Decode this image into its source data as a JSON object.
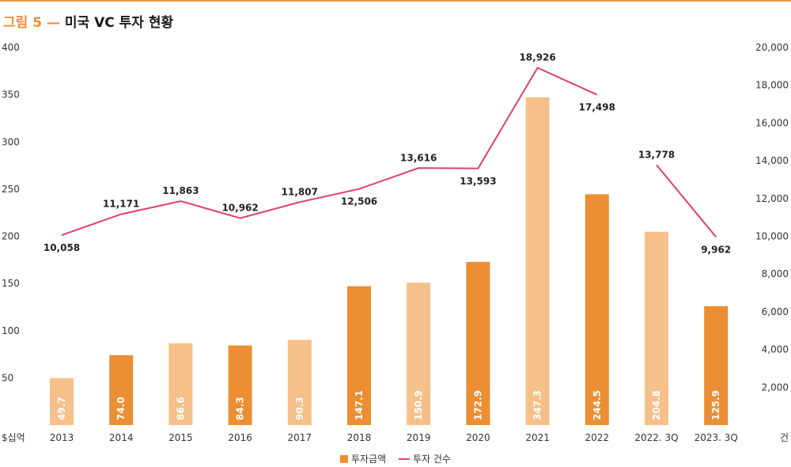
{
  "figure": {
    "number": "그림 5 —",
    "title": "미국 VC 투자 현황"
  },
  "chart_data": {
    "type": "bar",
    "categories": [
      "2013",
      "2014",
      "2015",
      "2016",
      "2017",
      "2018",
      "2019",
      "2020",
      "2021",
      "2022",
      "2022. 3Q",
      "2023. 3Q"
    ],
    "series": [
      {
        "name": "투자금액",
        "type": "bar",
        "axis": "left",
        "values": [
          49.7,
          74.0,
          86.6,
          84.3,
          90.3,
          147.1,
          150.9,
          172.9,
          347.3,
          244.5,
          204.8,
          125.9
        ],
        "labels": [
          "49.7",
          "74.0",
          "86.6",
          "84.3",
          "90.3",
          "147.1",
          "150.9",
          "172.9",
          "347.3",
          "244.5",
          "204.8",
          "125.9"
        ]
      },
      {
        "name": "투자 건수",
        "type": "line",
        "axis": "right",
        "values": [
          10058,
          11171,
          11863,
          10962,
          11807,
          12506,
          13616,
          13593,
          18926,
          17498,
          13778,
          9962
        ],
        "labels": [
          "10,058",
          "11,171",
          "11,863",
          "10,962",
          "11,807",
          "12,506",
          "13,616",
          "13,593",
          "18,926",
          "17,498",
          "13,778",
          "9,962"
        ]
      }
    ],
    "yleft": {
      "unit": "$십억",
      "ylim": [
        0,
        400
      ],
      "ticks": [
        50,
        100,
        150,
        200,
        250,
        300,
        350,
        400
      ],
      "tick_labels": [
        "50",
        "100",
        "150",
        "200",
        "250",
        "300",
        "350",
        "400"
      ]
    },
    "yright": {
      "unit": "건",
      "ylim": [
        0,
        20000
      ],
      "ticks": [
        2000,
        4000,
        6000,
        8000,
        10000,
        12000,
        14000,
        16000,
        18000,
        20000
      ],
      "tick_labels": [
        "2,000",
        "4,000",
        "6,000",
        "8,000",
        "10,000",
        "12,000",
        "14,000",
        "16,000",
        "18,000",
        "20,000"
      ]
    },
    "line_segments": [
      [
        0,
        9
      ],
      [
        10,
        11
      ]
    ],
    "colors": {
      "bar_dark": "#ec8e34",
      "bar_light": "#f6c08a",
      "line": "#e03f74",
      "axis_text": "#333333",
      "label_dark": "#222222",
      "label_bar": "#ffffff"
    }
  }
}
